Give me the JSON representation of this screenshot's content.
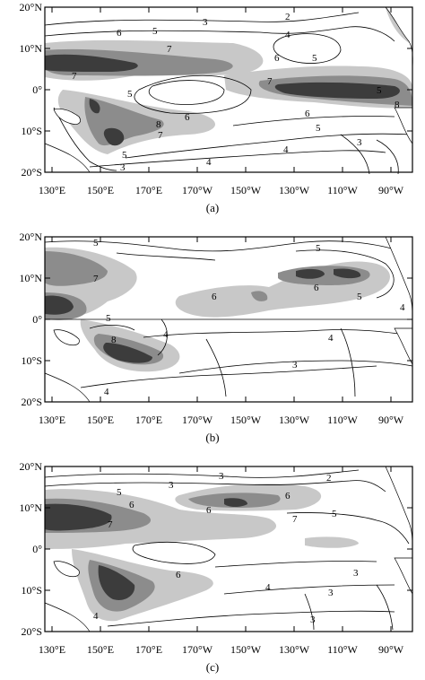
{
  "panels": [
    {
      "caption": "(a)",
      "lat_labels": [
        "20°N",
        "10°N",
        "0°",
        "10°S",
        "20°S"
      ],
      "lon_labels": [
        "130°E",
        "150°E",
        "170°E",
        "170°W",
        "150°W",
        "130°W",
        "110°W",
        "90°W"
      ],
      "contour_labels": [
        "3",
        "2",
        "5",
        "4",
        "6",
        "5",
        "7",
        "5",
        "6",
        "7",
        "8",
        "6",
        "5",
        "5",
        "7",
        "6",
        "7",
        "8",
        "5",
        "4",
        "3",
        "4",
        "3"
      ]
    },
    {
      "caption": "(b)",
      "lat_labels": [
        "20°N",
        "10°N",
        "0°",
        "10°S",
        "20°S"
      ],
      "lon_labels": [
        "130°E",
        "150°E",
        "170°E",
        "170°W",
        "150°W",
        "130°W",
        "110°W",
        "90°W"
      ],
      "contour_labels": [
        "5",
        "5",
        "7",
        "6",
        "6",
        "5",
        "4",
        "5",
        "8",
        "4",
        "4",
        "3",
        "4"
      ]
    },
    {
      "caption": "(c)",
      "lat_labels": [
        "20°N",
        "10°N",
        "0°",
        "10°S",
        "20°S"
      ],
      "lon_labels": [
        "130°E",
        "150°E",
        "170°E",
        "170°W",
        "150°W",
        "130°W",
        "110°W",
        "90°W"
      ],
      "contour_labels": [
        "3",
        "2",
        "3",
        "5",
        "6",
        "7",
        "7",
        "6",
        "6",
        "5",
        "6",
        "4",
        "4",
        "3",
        "3",
        "3"
      ]
    }
  ],
  "colors": {
    "shade1": "#c8c8c8",
    "shade2": "#8c8c8c",
    "shade3": "#3c3c3c",
    "line": "#000000",
    "land": "#ffffff"
  }
}
